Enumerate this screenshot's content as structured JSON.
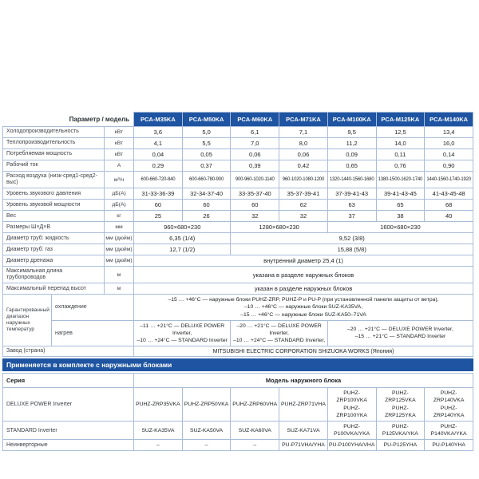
{
  "colors": {
    "accent_blue": "#1e54a1",
    "border": "#a9bdd9",
    "label_text": "#3c4045",
    "value_text": "#1b1e21"
  },
  "band_title": "Применяется в комплекте с наружными блоками",
  "spec": {
    "corner_label": "Параметр / модель",
    "models": [
      "PCA-M35KA",
      "PCA-M50KA",
      "PCA-M60KA",
      "PCA-M71KA",
      "PCA-M100KA",
      "PCA-M125KA",
      "PCA-M140KA"
    ],
    "rows": [
      {
        "label": "Холодопроизводительность",
        "unit": "кВт",
        "cells": [
          {
            "t": "3,6"
          },
          {
            "t": "5,0"
          },
          {
            "t": "6,1"
          },
          {
            "t": "7,1"
          },
          {
            "t": "9,5"
          },
          {
            "t": "12,5"
          },
          {
            "t": "13,4"
          }
        ]
      },
      {
        "label": "Теплопроизводительность",
        "unit": "кВт",
        "cells": [
          {
            "t": "4,1"
          },
          {
            "t": "5,5"
          },
          {
            "t": "7,0"
          },
          {
            "t": "8,0"
          },
          {
            "t": "11,2"
          },
          {
            "t": "14,0"
          },
          {
            "t": "16,0"
          }
        ]
      },
      {
        "label": "Потребляемая мощность",
        "unit": "кВт",
        "cells": [
          {
            "t": "0,04"
          },
          {
            "t": "0,05"
          },
          {
            "t": "0,06"
          },
          {
            "t": "0,06"
          },
          {
            "t": "0,09"
          },
          {
            "t": "0,11"
          },
          {
            "t": "0,14"
          }
        ]
      },
      {
        "label": "Рабочий ток",
        "unit": "А",
        "cells": [
          {
            "t": "0,29"
          },
          {
            "t": "0,37"
          },
          {
            "t": "0,39"
          },
          {
            "t": "0,42"
          },
          {
            "t": "0,65"
          },
          {
            "t": "0,76"
          },
          {
            "t": "0,90"
          }
        ]
      },
      {
        "label": "Расход воздуха (низк-сред1-сред2-выс)",
        "unit": "м³/ч",
        "cells": [
          {
            "t": "600-660-720-840"
          },
          {
            "t": "600-660-780-900"
          },
          {
            "t": "900-960-1020-1140"
          },
          {
            "t": "960-1020-1080-1200"
          },
          {
            "t": "1320-1440-1560-1680"
          },
          {
            "t": "1380-1500-1620-1740"
          },
          {
            "t": "1440-1560-1740-1920"
          }
        ]
      },
      {
        "label": "Уровень звукового давления",
        "unit": "дБ(А)",
        "cells": [
          {
            "t": "31-33-36-39"
          },
          {
            "t": "32-34-37-40"
          },
          {
            "t": "33-35-37-40"
          },
          {
            "t": "35-37-39-41"
          },
          {
            "t": "37-39-41-43"
          },
          {
            "t": "39-41-43-45"
          },
          {
            "t": "41-43-45-48"
          }
        ]
      },
      {
        "label": "Уровень звуковой мощности",
        "unit": "дБ(А)",
        "cells": [
          {
            "t": "60"
          },
          {
            "t": "60"
          },
          {
            "t": "60"
          },
          {
            "t": "62"
          },
          {
            "t": "63"
          },
          {
            "t": "65"
          },
          {
            "t": "68"
          }
        ]
      },
      {
        "label": "Вес",
        "unit": "кг",
        "cells": [
          {
            "t": "25"
          },
          {
            "t": "26"
          },
          {
            "t": "32"
          },
          {
            "t": "32"
          },
          {
            "t": "37"
          },
          {
            "t": "38"
          },
          {
            "t": "40"
          }
        ]
      },
      {
        "label": "Размеры Ш×Д×В",
        "unit": "мм",
        "cells": [
          {
            "t": "960×680×230",
            "s": 2
          },
          {
            "t": "1280×680×230",
            "s": 2
          },
          {
            "t": "1600×680×230",
            "s": 3
          }
        ]
      },
      {
        "label": "Диаметр труб: жидкость",
        "unit": "мм (дюйм)",
        "cells": [
          {
            "t": "6,35 (1/4)",
            "s": 2
          },
          {
            "t": "9,52 (3/8)",
            "s": 5
          }
        ]
      },
      {
        "label": "Диаметр труб: газ",
        "unit": "мм (дюйм)",
        "cells": [
          {
            "t": "12,7 (1/2)",
            "s": 2
          },
          {
            "t": "15,88 (5/8)",
            "s": 5
          }
        ]
      },
      {
        "label": "Диаметр дренажа",
        "unit": "мм (дюйм)",
        "cells": [
          {
            "t": "внутренний диаметр 25,4 (1)",
            "s": 7
          }
        ]
      },
      {
        "label": "Максимальная длина трубопроводов",
        "unit": "м",
        "cells": [
          {
            "t": "указана в разделе наружных блоков",
            "s": 7
          }
        ]
      },
      {
        "label": "Максимальный перепад высот",
        "unit": "м",
        "cells": [
          {
            "t": "указан в разделе наружных блоков",
            "s": 7
          }
        ]
      }
    ],
    "temp": {
      "group_label": "Гарантированный диапазон наружных температур",
      "cooling_label": "охлаждение",
      "cooling_lines": [
        "–15 … +46°C — наружные блоки PUHZ-ZRP, PUHZ-P и PU-P (при установленной панели защиты от ветра),",
        "–10 … +46°C — наружные блоки SUZ-KA35VA,",
        "–15 … +46°C — наружные блоки SUZ-KA50–71VA"
      ],
      "heating_label": "нагрев",
      "heating_cells": [
        {
          "lines": [
            "–11 … +21°C — DELUXE POWER Inverter,",
            "–10 … +24°C — STANDARD Inverter"
          ]
        },
        {
          "lines": [
            "–20 … +21°C — DELUXE POWER Inverter,",
            "–10 … +24°C — STANDARD Inverter,"
          ]
        },
        {
          "lines": [
            "–20 … +21°C — DELUXE POWER Inverter,",
            "–15 … +21°C — STANDARD Inverter"
          ]
        }
      ]
    },
    "factory_label": "Завод (страна)",
    "factory_value": "MITSUBISHI ELECTRIC CORPORATION SHIZUOKA WORKS (Япония)"
  },
  "outdoor": {
    "series_header": "Серия",
    "models_header": "Модель наружного блока",
    "rows": [
      {
        "label": "DELUXE POWER Inverter",
        "cells": [
          [
            "PUHZ-ZRP35VKA"
          ],
          [
            "PUHZ-ZRP50VKA"
          ],
          [
            "PUHZ-ZRP60VHA"
          ],
          [
            "PUHZ-ZRP71VHA"
          ],
          [
            "PUHZ-ZRP100VKA",
            "PUHZ-ZRP100YKA"
          ],
          [
            "PUHZ-ZRP125VKA",
            "PUHZ-ZRP125YKA"
          ],
          [
            "PUHZ-ZRP140VKA",
            "PUHZ-ZRP140YKA"
          ]
        ]
      },
      {
        "label": "STANDARD Inverter",
        "cells": [
          [
            "SUZ-KA35VA"
          ],
          [
            "SUZ-KA50VA"
          ],
          [
            "SUZ-KA60VA"
          ],
          [
            "SUZ-KA71VA"
          ],
          [
            "PUHZ-P100VKA/YKA"
          ],
          [
            "PUHZ-P125VKA/YKA"
          ],
          [
            "PUHZ-P140VKA/YKA"
          ]
        ]
      },
      {
        "label": "Неинверторные",
        "cells": [
          [
            "–"
          ],
          [
            "–"
          ],
          [
            "–"
          ],
          [
            "PU-P71VHA/YHA"
          ],
          [
            "PU-P100YHA/VHA"
          ],
          [
            "PU-P125YHA"
          ],
          [
            "PU-P140YHA"
          ]
        ]
      }
    ]
  }
}
